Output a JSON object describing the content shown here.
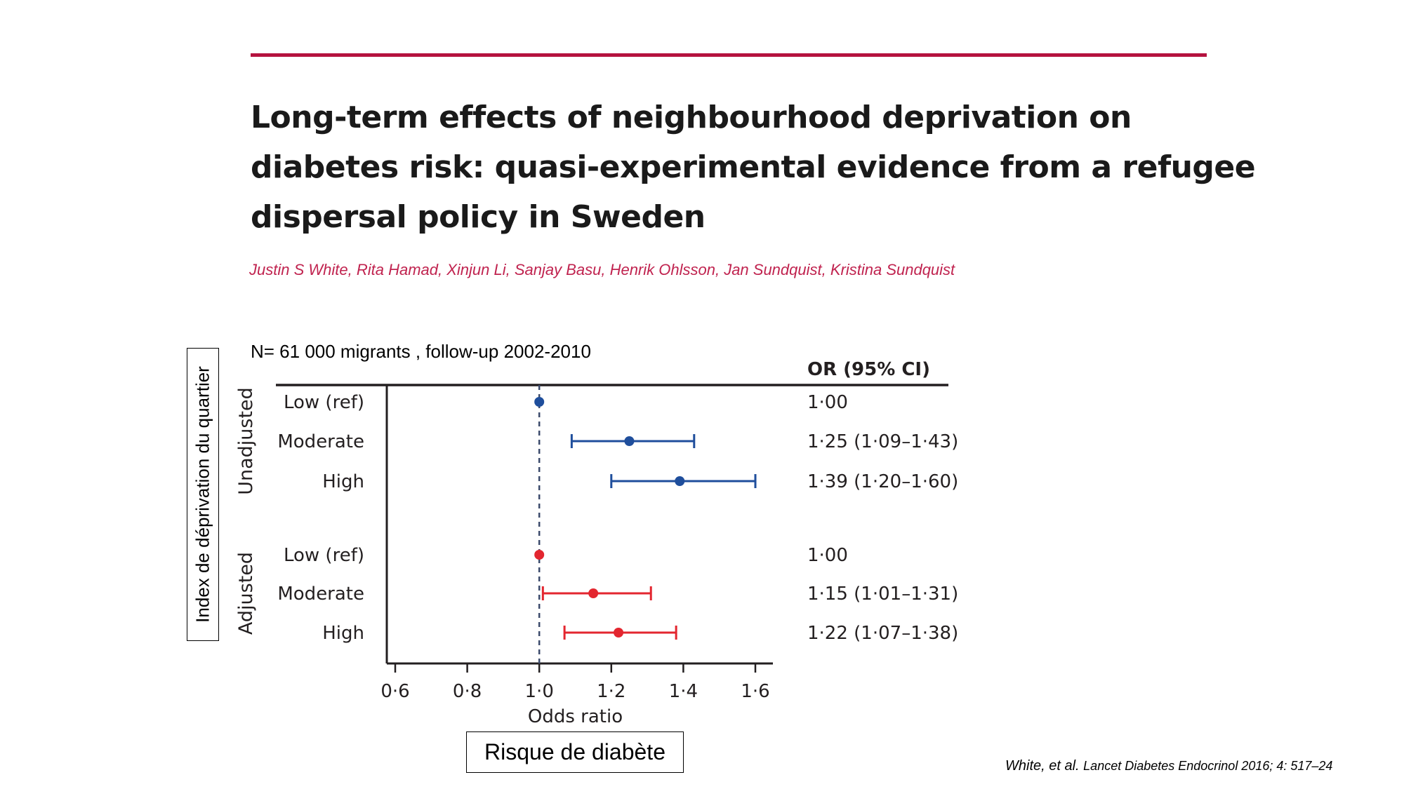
{
  "header": {
    "title_lines": [
      "Long-term effects of neighbourhood deprivation on",
      "diabetes risk: quasi-experimental evidence from a refugee",
      "dispersal policy in Sweden"
    ],
    "authors": "Justin S White, Rita Hamad, Xinjun Li, Sanjay Basu, Henrik Ohlsson, Jan Sundquist, Kristina Sundquist"
  },
  "annotations": {
    "sample_note": "N= 61 000 migrants , follow-up 2002-2010",
    "y_box_label": "Index de déprivation du quartier",
    "x_box_label": "Risque de diabète",
    "citation_authors": "White, et al.",
    "citation_journal": "Lancet Diabetes Endocrinol 2016; 4: 517–24"
  },
  "colors": {
    "accent": "#b5123f",
    "authors": "#c0234f",
    "unadjusted": "#1f4e9c",
    "adjusted": "#e3262f",
    "axis": "#231f20"
  },
  "chart_data": {
    "type": "forest",
    "xlabel": "Odds ratio",
    "or_header": "OR (95% CI)",
    "xlim": [
      0.6,
      1.6
    ],
    "xticks": [
      0.6,
      0.8,
      1.0,
      1.2,
      1.4,
      1.6
    ],
    "xtick_labels": [
      "0·6",
      "0·8",
      "1·0",
      "1·2",
      "1·4",
      "1·6"
    ],
    "reference_line": 1.0,
    "groups": [
      {
        "name": "Unadjusted",
        "color": "#1f4e9c",
        "rows": [
          {
            "label": "Low (ref)",
            "or": 1.0,
            "lo": null,
            "hi": null,
            "text": "1·00"
          },
          {
            "label": "Moderate",
            "or": 1.25,
            "lo": 1.09,
            "hi": 1.43,
            "text": "1·25 (1·09–1·43)"
          },
          {
            "label": "High",
            "or": 1.39,
            "lo": 1.2,
            "hi": 1.6,
            "text": "1·39 (1·20–1·60)"
          }
        ]
      },
      {
        "name": "Adjusted",
        "color": "#e3262f",
        "rows": [
          {
            "label": "Low (ref)",
            "or": 1.0,
            "lo": null,
            "hi": null,
            "text": "1·00"
          },
          {
            "label": "Moderate",
            "or": 1.15,
            "lo": 1.01,
            "hi": 1.31,
            "text": "1·15 (1·01–1·31)"
          },
          {
            "label": "High",
            "or": 1.22,
            "lo": 1.07,
            "hi": 1.38,
            "text": "1·22 (1·07–1·38)"
          }
        ]
      }
    ]
  }
}
